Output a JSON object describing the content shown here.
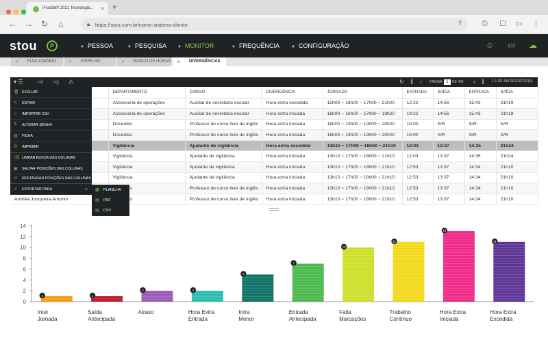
{
  "browser": {
    "tab_title": "iFractal® 2021 Tecnologia...",
    "tab_close": "×",
    "new_tab": "+",
    "url": "https://stou.com.br/nome-sistema-cliente"
  },
  "app": {
    "logo": "stou",
    "logo_badge": "P",
    "menu": [
      {
        "label": "PESSOA",
        "active": false
      },
      {
        "label": "PESQUISA",
        "active": false
      },
      {
        "label": "MONITOR",
        "active": true
      },
      {
        "label": "FREQUÊNCIA",
        "active": false
      },
      {
        "label": "CONFIGURAÇÃO",
        "active": false
      }
    ]
  },
  "subtabs": [
    {
      "label": "FUNCIONÁRIO",
      "active": false
    },
    {
      "label": "ESPELHO",
      "active": false
    },
    {
      "label": "BANCO DE HORAS",
      "active": false
    },
    {
      "label": "DIVERGÊNCIAS",
      "active": true
    }
  ],
  "toolbar": {
    "page_label": "PÁGINA",
    "page_num": "1",
    "page_total": "DE 436",
    "records": "1-1 DE 436 REGISTRO(S)"
  },
  "table": {
    "columns": [
      "DEPARTAMENTO",
      "CARGO",
      "DIVERGÊNCIA",
      "JORNADA",
      "ENTRADA",
      "SAÍDA",
      "ENTRADA",
      "SAÍDA"
    ],
    "rows": [
      {
        "name": "",
        "cells": [
          "Assessoria de operações",
          "Auxiliar de secretaria escolar",
          "Hora extra excedida",
          "12h00 ~ 16h00 ~ 17h00 ~ 21h00",
          "12:22",
          "14:56",
          "15:43",
          "21h19"
        ]
      },
      {
        "name": "",
        "cells": [
          "Assessoria de operações",
          "Auxiliar de secretaria escolar",
          "Hora extra iniciada",
          "16h00 ~ 16h00 ~ 17h00 ~ 19h20",
          "19:22",
          "14:56",
          "15:43",
          "21h19"
        ]
      },
      {
        "name": "",
        "cells": [
          "Docentes",
          "Professor de curso livre de inglês",
          "Hora extra iniciada",
          "18h00 ~ 19h00 ~ 19h00 ~ 20h00",
          "19:00",
          "S/R",
          "S/R",
          "S/R"
        ]
      },
      {
        "name": "",
        "cells": [
          "Docentes",
          "Professor de curso livre de inglês",
          "Hora extra iniciada",
          "18h00 ~ 19h00 ~ 19h00 ~ 20h00",
          "19:00",
          "S/R",
          "S/R",
          "S/R"
        ]
      },
      {
        "name": "",
        "cells": [
          "Vigilância",
          "Ajudante de vigilância",
          "Hora extra excedida",
          "13h10 ~ 17h00 ~ 18h00 ~ 21h10",
          "12:03",
          "13:37",
          "14:35",
          "21h24"
        ]
      },
      {
        "name": "",
        "cells": [
          "Vigilância",
          "Ajudante de vigilância",
          "Hora extra iniciada",
          "13h10 ~ 17h00 ~ 18h00 ~ 21h10",
          "12:03",
          "13:37",
          "14:35",
          "21h24"
        ]
      },
      {
        "name": "",
        "cells": [
          "Vigilância",
          "Ajudante de vigilância",
          "Hora extra iniciada",
          "13h10 ~ 17h00 ~ 18h00 ~ 21h10",
          "12:53",
          "13:37",
          "14:34",
          "21h10"
        ]
      },
      {
        "name": "",
        "cells": [
          "Vigilância",
          "Ajudante de vigilância",
          "Hora extra iniciada",
          "13h10 ~ 17h00 ~ 18h00 ~ 21h10",
          "12:53",
          "13:37",
          "14:34",
          "21h10"
        ]
      },
      {
        "name": "",
        "cells": [
          "Docentes",
          "Professor de curso livre de inglês",
          "Hora extra iniciada",
          "13h10 ~ 17h00 ~ 18h00 ~ 21h10",
          "12:53",
          "13:37",
          "14:34",
          "21h10"
        ]
      },
      {
        "name": "Andréa Junqueira Amorim",
        "cells": [
          "Docentes",
          "Professor de curso livre de inglês",
          "Hora extra iniciada",
          "13h10 ~ 17h00 ~ 18h00 ~ 21h10",
          "12:53",
          "13:37",
          "14:34",
          "21h10"
        ]
      }
    ]
  },
  "context_menu": {
    "items": [
      "EXCLUIR",
      "EDITAR",
      "IMPORTAR CSV",
      "ALTERAR SENHA",
      "FICHA",
      "IMPRIMIR",
      "LIMPAR BUSCA DAS COLUNAS",
      "SALVAR POSIÇÕES DAS COLUNAS",
      "RESTAURAR POSIÇÕES DAS COLUNAS",
      "EXPORTAR PARA"
    ],
    "submenu": [
      "PLANILHA",
      "PDF",
      "CSV"
    ]
  },
  "chart_data": {
    "type": "bar",
    "categories": [
      "Inter Jornada",
      "Saída Antecipada",
      "Atraso",
      "Hora Extra Entrada",
      "Intra Menor",
      "Entrada Antecipada",
      "Falta Marcações",
      "Trabalho Contínuo",
      "Hora Extra Iniciada",
      "Hora Extra Excedida"
    ],
    "category_lines": [
      [
        "Inter",
        "Jornada"
      ],
      [
        "Saída",
        "Antecipada"
      ],
      [
        "Atraso",
        ""
      ],
      [
        "Hora Extra",
        "Entrada"
      ],
      [
        "Intra",
        "Menor"
      ],
      [
        "Entrada",
        "Antecipada"
      ],
      [
        "Falta",
        "Marcações"
      ],
      [
        "Trabalho",
        "Contínuo"
      ],
      [
        "Hora Extra",
        "Iniciada"
      ],
      [
        "Hora Extra",
        "Excedida"
      ]
    ],
    "values": [
      1,
      1,
      2,
      2,
      5,
      7,
      10,
      11,
      13,
      11
    ],
    "colors": [
      "#f39c12",
      "#c0192d",
      "#9b59b6",
      "#2bbbad",
      "#0e7366",
      "#4cb94f",
      "#cfe02b",
      "#f2d91c",
      "#ef2a87",
      "#5d3597"
    ],
    "ylim": [
      0,
      14
    ],
    "yticks": [
      "0",
      "2",
      "4",
      "6",
      "8",
      "10",
      "12",
      "14"
    ],
    "grid": true
  }
}
